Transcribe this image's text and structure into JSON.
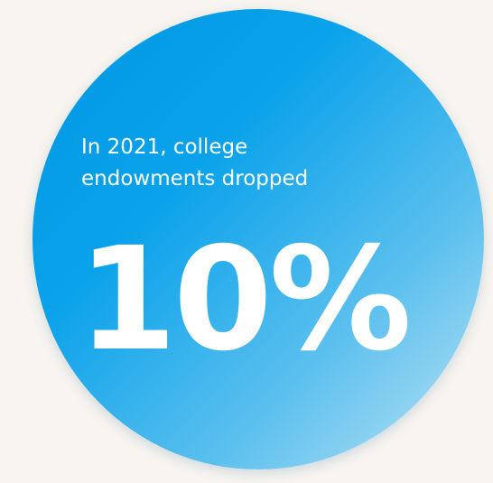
{
  "infographic": {
    "lead_line1": "In 2021, college",
    "lead_line2": "endowments dropped",
    "stat": "10%"
  },
  "colors": {
    "background": "#f8f5f0",
    "circle_gradient_start": "#0097e4",
    "circle_gradient_end": "#bfe4f4",
    "text": "#ffffff"
  }
}
